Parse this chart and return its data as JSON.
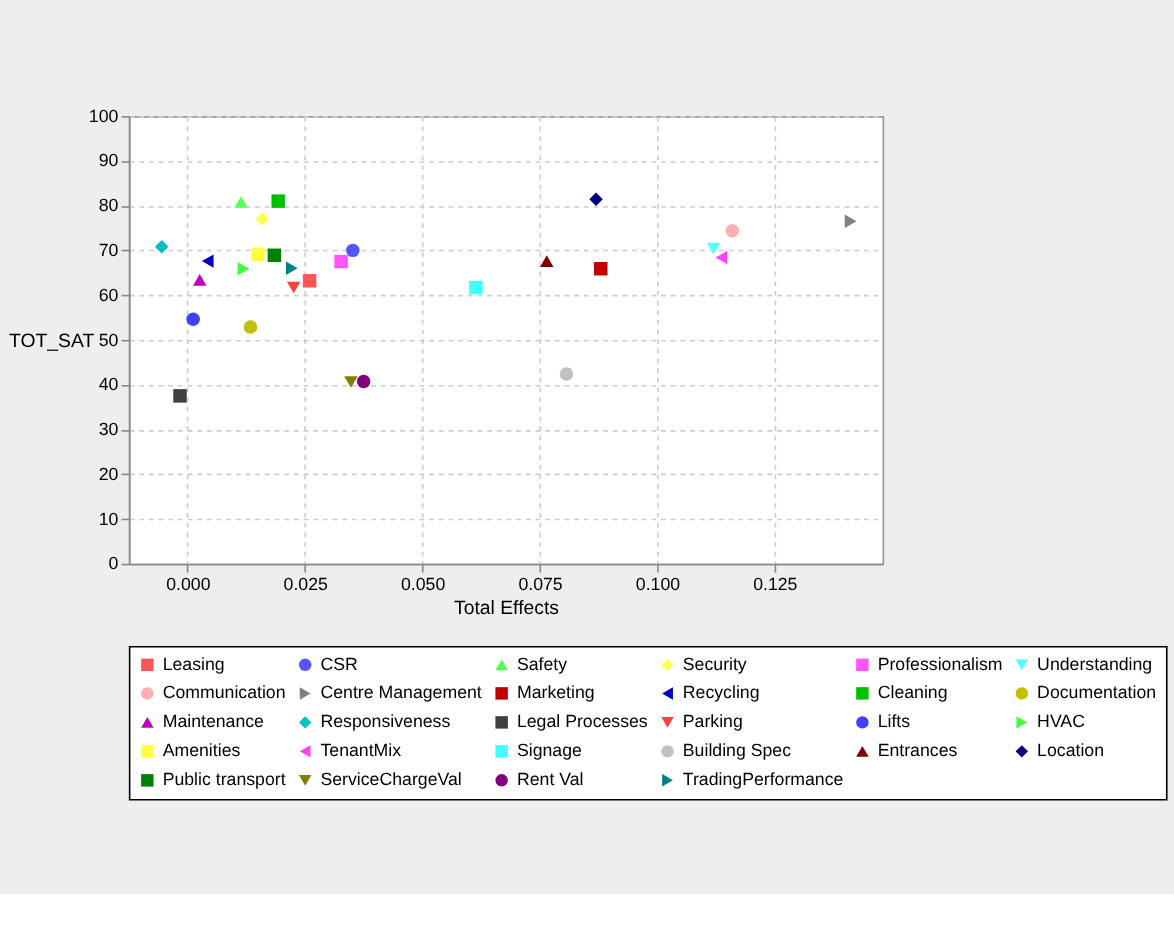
{
  "chart_data": {
    "type": "scatter",
    "xlabel": "Total Effects",
    "ylabel": "TOT_SAT",
    "xlim": [
      -0.0125,
      0.148
    ],
    "ylim": [
      0,
      100
    ],
    "xticks": [
      {
        "value": 0,
        "label": "0.000"
      },
      {
        "value": 0.025,
        "label": "0.025"
      },
      {
        "value": 0.05,
        "label": "0.050"
      },
      {
        "value": 0.075,
        "label": "0.075"
      },
      {
        "value": 0.1,
        "label": "0.100"
      },
      {
        "value": 0.125,
        "label": "0.125"
      }
    ],
    "yticks": [
      0,
      10,
      20,
      30,
      40,
      50,
      60,
      70,
      80,
      90,
      100
    ],
    "grid": true,
    "legend": "bottom",
    "series": [
      {
        "name": "Leasing",
        "color": "#ff5555",
        "marker": "square",
        "x": [
          0.026
        ],
        "values": [
          63.2
        ]
      },
      {
        "name": "CSR",
        "color": "#5555ff",
        "marker": "circle",
        "x": [
          0.0352
        ],
        "values": [
          70.0
        ]
      },
      {
        "name": "Safety",
        "color": "#55ff55",
        "marker": "triangle",
        "x": [
          0.0114
        ],
        "values": [
          80.8
        ]
      },
      {
        "name": "Security",
        "color": "#ffff55",
        "marker": "diamond",
        "x": [
          0.0159
        ],
        "values": [
          77.0
        ]
      },
      {
        "name": "Professionalism",
        "color": "#ff55ff",
        "marker": "square",
        "x": [
          0.0327
        ],
        "values": [
          67.5
        ]
      },
      {
        "name": "Understanding",
        "color": "#55ffff",
        "marker": "triangle-down",
        "x": [
          0.112
        ],
        "values": [
          70.4
        ]
      },
      {
        "name": "Communication",
        "color": "#ffafaf",
        "marker": "circle",
        "x": [
          0.116
        ],
        "values": [
          74.4
        ]
      },
      {
        "name": "Centre Management",
        "color": "#808080",
        "marker": "triangle-right",
        "x": [
          0.1412
        ],
        "values": [
          76.5
        ]
      },
      {
        "name": "Marketing",
        "color": "#c00000",
        "marker": "square",
        "x": [
          0.088
        ],
        "values": [
          65.9
        ]
      },
      {
        "name": "Recycling",
        "color": "#0000c0",
        "marker": "triangle-left",
        "x": [
          0.0043
        ],
        "values": [
          67.6
        ]
      },
      {
        "name": "Cleaning",
        "color": "#00c000",
        "marker": "square",
        "x": [
          0.0193
        ],
        "values": [
          81.0
        ]
      },
      {
        "name": "Documentation",
        "color": "#c0c000",
        "marker": "circle",
        "x": [
          0.0134
        ],
        "values": [
          52.9
        ]
      },
      {
        "name": "Maintenance",
        "color": "#c000c0",
        "marker": "triangle",
        "x": [
          0.0026
        ],
        "values": [
          63.4
        ]
      },
      {
        "name": "Responsiveness",
        "color": "#00c0c0",
        "marker": "diamond",
        "x": [
          -0.0055
        ],
        "values": [
          70.8
        ]
      },
      {
        "name": "Legal Processes",
        "color": "#404040",
        "marker": "square",
        "x": [
          -0.0016
        ],
        "values": [
          37.5
        ]
      },
      {
        "name": "Parking",
        "color": "#ff4040",
        "marker": "triangle-down",
        "x": [
          0.0226
        ],
        "values": [
          61.7
        ]
      },
      {
        "name": "Lifts",
        "color": "#4040ff",
        "marker": "circle",
        "x": [
          0.0012
        ],
        "values": [
          54.6
        ]
      },
      {
        "name": "HVAC",
        "color": "#40ff40",
        "marker": "triangle-right",
        "x": [
          0.0119
        ],
        "values": [
          65.9
        ]
      },
      {
        "name": "Amenities",
        "color": "#ffff40",
        "marker": "square",
        "x": [
          0.015
        ],
        "values": [
          69.1
        ]
      },
      {
        "name": "TenantMix",
        "color": "#ff40ff",
        "marker": "triangle-left",
        "x": [
          0.1137
        ],
        "values": [
          68.4
        ]
      },
      {
        "name": "Signage",
        "color": "#40ffff",
        "marker": "square",
        "x": [
          0.0614
        ],
        "values": [
          61.7
        ]
      },
      {
        "name": "Building Spec",
        "color": "#c0c0c0",
        "marker": "circle",
        "x": [
          0.0807
        ],
        "values": [
          42.4
        ]
      },
      {
        "name": "Entrances",
        "color": "#800000",
        "marker": "triangle",
        "x": [
          0.0765
        ],
        "values": [
          67.6
        ]
      },
      {
        "name": "Location",
        "color": "#000080",
        "marker": "diamond",
        "x": [
          0.087
        ],
        "values": [
          81.4
        ]
      },
      {
        "name": "Public transport",
        "color": "#008000",
        "marker": "square",
        "x": [
          0.0185
        ],
        "values": [
          68.9
        ]
      },
      {
        "name": "ServiceChargeVal",
        "color": "#808000",
        "marker": "triangle-down",
        "x": [
          0.0348
        ],
        "values": [
          40.6
        ]
      },
      {
        "name": "Rent Val",
        "color": "#800080",
        "marker": "circle",
        "x": [
          0.0375
        ],
        "values": [
          40.7
        ]
      },
      {
        "name": "TradingPerformance",
        "color": "#008080",
        "marker": "triangle-right",
        "x": [
          0.0222
        ],
        "values": [
          66.0
        ]
      }
    ]
  }
}
